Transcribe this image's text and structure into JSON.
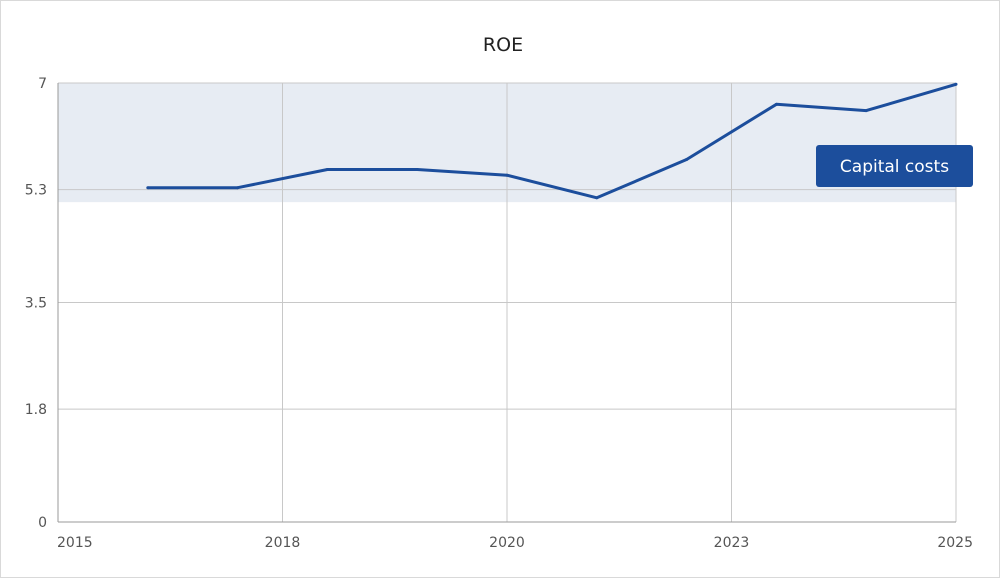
{
  "colors": {
    "line": "#1c4e9c",
    "band": "#e7ecf3",
    "grid": "#c8c8c8",
    "badge_bg": "#1c4e9c",
    "badge_text": "#ffffff"
  },
  "chart_data": {
    "type": "line",
    "title": "ROE",
    "xlabel": "",
    "ylabel": "",
    "x_ticks": [
      "2015",
      "2018",
      "2020",
      "2023",
      "2025"
    ],
    "x_tick_values": [
      2015,
      2017.5,
      2020,
      2022.5,
      2025
    ],
    "xlim": [
      2015,
      2025
    ],
    "y_ticks": [
      "7",
      "5.3",
      "3.5",
      "1.8",
      "0"
    ],
    "y_tick_values": [
      7,
      5.3,
      3.5,
      1.8,
      0
    ],
    "ylim": [
      0,
      7
    ],
    "grid": true,
    "series": [
      {
        "x": [
          2016,
          2017,
          2018,
          2019,
          2020,
          2021,
          2022,
          2023,
          2024,
          2025
        ],
        "y": [
          5.33,
          5.33,
          5.62,
          5.62,
          5.53,
          5.17,
          5.78,
          6.66,
          6.56,
          6.98
        ]
      }
    ],
    "band": {
      "label": "Capital costs",
      "y_from": 5.1,
      "y_to": 7
    }
  }
}
